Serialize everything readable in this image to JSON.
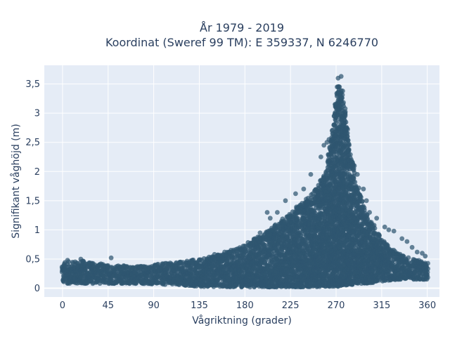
{
  "chart_data": {
    "type": "scatter",
    "title_lines": [
      "År 1979 - 2019",
      "Koordinat (Sweref 99 TM): E 359337, N 6246770"
    ],
    "xlabel": "Vågriktning (grader)",
    "ylabel": "Signifikant våghöjd (m)",
    "xlim": [
      -18,
      372
    ],
    "ylim": [
      -0.15,
      3.82
    ],
    "x_ticks": [
      0,
      45,
      90,
      135,
      180,
      225,
      270,
      315,
      360
    ],
    "x_tick_labels": [
      "0",
      "45",
      "90",
      "135",
      "180",
      "225",
      "270",
      "315",
      "360"
    ],
    "y_ticks": [
      0,
      0.5,
      1,
      1.5,
      2,
      2.5,
      3,
      3.5
    ],
    "y_tick_labels": [
      "0",
      "0,5",
      "1",
      "1,5",
      "2",
      "2,5",
      "3",
      "3,5"
    ],
    "grid": true,
    "background_color": "#e5ecf6",
    "marker_color": "#2f5670",
    "envelope": {
      "x": [
        0,
        20,
        45,
        70,
        90,
        110,
        135,
        160,
        180,
        200,
        225,
        245,
        260,
        268,
        272,
        276,
        282,
        290,
        300,
        315,
        330,
        345,
        360
      ],
      "upper": [
        0.45,
        0.47,
        0.4,
        0.38,
        0.4,
        0.45,
        0.5,
        0.6,
        0.75,
        0.95,
        1.3,
        1.6,
        2.0,
        2.9,
        3.5,
        3.4,
        2.6,
        1.8,
        1.3,
        0.85,
        0.6,
        0.5,
        0.45
      ],
      "lower": [
        0.08,
        0.08,
        0.08,
        0.08,
        0.07,
        0.06,
        0.03,
        0.02,
        0.02,
        0.02,
        0.02,
        0.02,
        0.03,
        0.03,
        0.03,
        0.05,
        0.05,
        0.08,
        0.08,
        0.12,
        0.15,
        0.15,
        0.15
      ]
    },
    "highlight_points": [
      [
        272,
        3.6
      ],
      [
        275,
        3.63
      ],
      [
        271,
        3.45
      ],
      [
        274,
        3.3
      ],
      [
        269,
        3.15
      ],
      [
        268,
        2.95
      ],
      [
        277,
        2.8
      ],
      [
        279,
        2.7
      ],
      [
        266,
        2.7
      ],
      [
        263,
        2.55
      ],
      [
        261,
        2.5
      ],
      [
        258,
        2.45
      ],
      [
        255,
        2.25
      ],
      [
        282,
        2.45
      ],
      [
        285,
        2.2
      ],
      [
        288,
        2.1
      ],
      [
        291,
        1.95
      ],
      [
        297,
        1.7
      ],
      [
        245,
        1.95
      ],
      [
        238,
        1.7
      ],
      [
        230,
        1.62
      ],
      [
        220,
        1.5
      ],
      [
        212,
        1.3
      ],
      [
        202,
        1.3
      ],
      [
        205,
        1.2
      ],
      [
        300,
        1.5
      ],
      [
        303,
        1.3
      ],
      [
        310,
        1.2
      ],
      [
        318,
        1.05
      ],
      [
        322,
        1.0
      ],
      [
        327,
        0.98
      ],
      [
        335,
        0.85
      ],
      [
        340,
        0.8
      ],
      [
        345,
        0.7
      ],
      [
        350,
        0.62
      ],
      [
        355,
        0.6
      ],
      [
        358,
        0.55
      ],
      [
        48,
        0.52
      ],
      [
        18,
        0.5
      ],
      [
        5,
        0.48
      ],
      [
        160,
        0.62
      ],
      [
        150,
        0.58
      ],
      [
        175,
        0.65
      ],
      [
        190,
        0.85
      ],
      [
        195,
        0.95
      ]
    ]
  }
}
